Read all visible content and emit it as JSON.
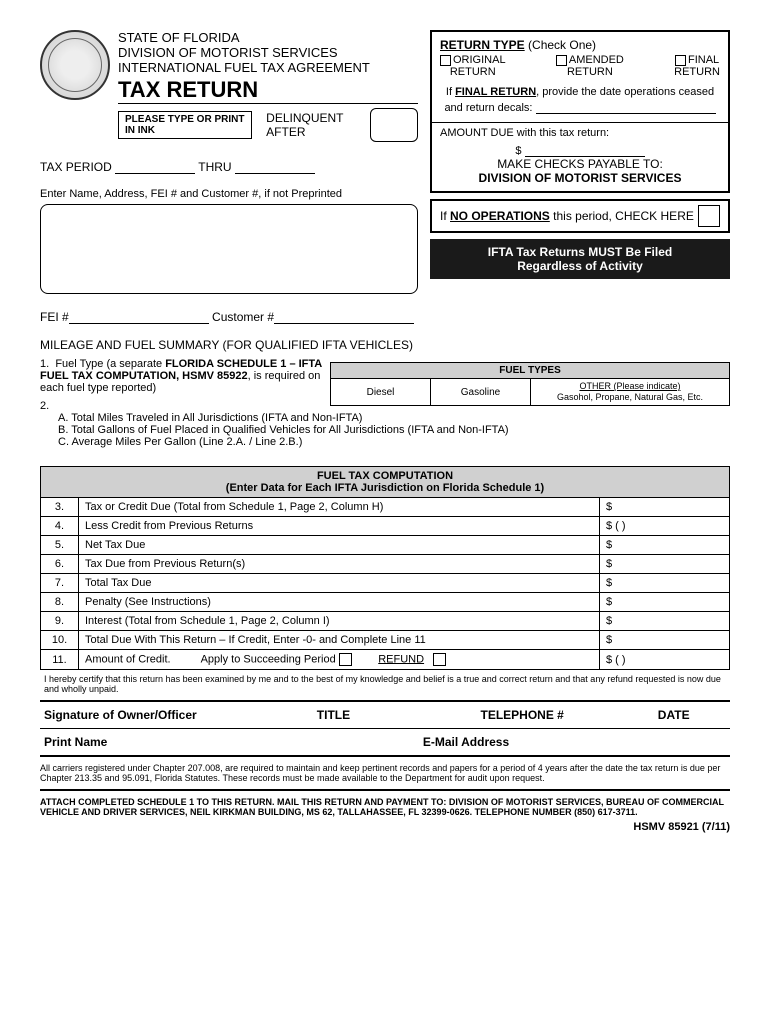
{
  "header": {
    "state": "STATE OF FLORIDA",
    "division": "DIVISION OF MOTORIST SERVICES",
    "agreement": "INTERNATIONAL FUEL TAX AGREEMENT",
    "title": "TAX RETURN",
    "ink_notice": "PLEASE TYPE OR PRINT IN INK",
    "delinquent": "DELINQUENT AFTER",
    "tax_period": "TAX PERIOD",
    "thru": "THRU",
    "enter_name": "Enter Name, Address, FEI # and Customer #, if not Preprinted",
    "fei": "FEI #",
    "customer": "Customer #"
  },
  "return_type": {
    "title": "RETURN TYPE",
    "check_one": "(Check One)",
    "original": "ORIGINAL",
    "amended": "AMENDED",
    "final": "FINAL",
    "return_word": "RETURN",
    "final_note1": "If ",
    "final_note_u": "FINAL RETURN",
    "final_note2": ", provide the date operations ceased and return decals:",
    "amount_due": "AMOUNT DUE with this tax return:",
    "dollar": "$",
    "payable1": "MAKE CHECKS PAYABLE TO:",
    "payable2": "DIVISION OF MOTORIST SERVICES",
    "noops1": "If ",
    "noops_u": "NO OPERATIONS",
    "noops2": " this period, CHECK HERE",
    "banner1": "IFTA Tax Returns MUST Be Filed",
    "banner2": "Regardless of Activity"
  },
  "mileage_section": "MILEAGE AND FUEL SUMMARY (FOR QUALIFIED IFTA VEHICLES)",
  "item1": {
    "num": "1.",
    "text1": "Fuel Type (a separate ",
    "bold": "FLORIDA SCHEDULE 1 – IFTA FUEL TAX COMPUTATION, HSMV 85922",
    "text2": ", is required on each fuel type reported)"
  },
  "fuel_types": {
    "header": "FUEL TYPES",
    "diesel": "Diesel",
    "gasoline": "Gasoline",
    "other_u": "OTHER (Please indicate)",
    "other_sub": "Gasohol, Propane, Natural Gas, Etc."
  },
  "item2": {
    "num": "2.",
    "a": "A.  Total Miles Traveled in All Jurisdictions (IFTA and Non-IFTA)",
    "b": "B.  Total Gallons of Fuel Placed in Qualified Vehicles for All Jurisdictions (IFTA and Non-IFTA)",
    "c": "C.  Average Miles Per Gallon (Line 2.A. / Line 2.B.)"
  },
  "comp": {
    "title1": "FUEL TAX COMPUTATION",
    "title2": "(Enter Data for Each IFTA Jurisdiction on Florida Schedule 1)",
    "rows": [
      {
        "n": "3.",
        "d": "Tax or Credit Due (Total from Schedule 1, Page 2, Column H)",
        "a": "$"
      },
      {
        "n": "4.",
        "d": "Less Credit from Previous Returns",
        "a": "$  (                         )"
      },
      {
        "n": "5.",
        "d": "Net Tax Due",
        "a": "$"
      },
      {
        "n": "6.",
        "d": "Tax Due from Previous Return(s)",
        "a": "$"
      },
      {
        "n": "7.",
        "d": "Total Tax Due",
        "a": "$"
      },
      {
        "n": "8.",
        "d": "Penalty (See Instructions)",
        "a": "$"
      },
      {
        "n": "9.",
        "d": "Interest (Total from Schedule 1, Page 2, Column I)",
        "a": "$"
      },
      {
        "n": "10.",
        "d": "Total Due With This Return – If Credit, Enter -0- and Complete Line 11",
        "a": "$"
      }
    ],
    "row11_n": "11.",
    "row11_d1": "Amount of Credit.",
    "row11_d2": "Apply to Succeeding Period",
    "row11_d3": "REFUND",
    "row11_a": "$  (                         )"
  },
  "cert": "I hereby certify that this return has been examined by me and to the best of my knowledge and belief is a true and correct return and that any refund requested is now due and wholly unpaid.",
  "sig": {
    "sig": "Signature of Owner/Officer",
    "title": "TITLE",
    "phone": "TELEPHONE #",
    "date": "DATE",
    "print": "Print Name",
    "email": "E-Mail Address"
  },
  "foot1": "All carriers registered under Chapter 207.008, are required to maintain and keep pertinent records and papers for a period of 4 years after the date the tax return is due per Chapter 213.35 and 95.091, Florida Statutes.  These records must be made available to the Department for audit upon request.",
  "foot2": "ATTACH COMPLETED SCHEDULE 1 TO THIS RETURN.  MAIL THIS RETURN AND PAYMENT TO:  DIVISION OF MOTORIST SERVICES, BUREAU OF COMMERCIAL VEHICLE AND DRIVER SERVICES, NEIL KIRKMAN BUILDING, MS 62, TALLAHASSEE, FL 32399-0626.  TELEPHONE NUMBER (850) 617-3711.",
  "form_id": "HSMV 85921 (7/11)"
}
